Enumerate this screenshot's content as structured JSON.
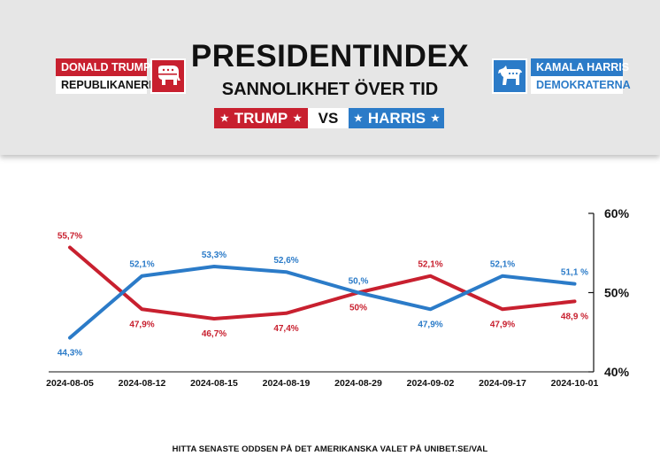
{
  "header": {
    "title": "PRESIDENTINDEX",
    "subtitle": "SANNOLIKHET ÖVER TID",
    "vs_trump": "TRUMP",
    "vs_mid": "VS",
    "vs_harris": "HARRIS",
    "star": "★"
  },
  "candidates": {
    "republican": {
      "name": "DONALD TRUMP",
      "party": "REPUBLIKANERNA",
      "icon": "elephant-icon",
      "color": "#c8202f"
    },
    "democrat": {
      "name": "KAMALA HARRIS",
      "party": "DEMOKRATERNA",
      "icon": "donkey-icon",
      "color": "#2b7bc8"
    }
  },
  "chart_data": {
    "type": "line",
    "categories": [
      "2024-08-05",
      "2024-08-12",
      "2024-08-15",
      "2024-08-19",
      "2024-08-29",
      "2024-09-02",
      "2024-09-17",
      "2024-10-01"
    ],
    "series": [
      {
        "name": "TRUMP",
        "color": "#c8202f",
        "values": [
          55.7,
          47.9,
          46.7,
          47.4,
          50.0,
          52.1,
          47.9,
          48.9
        ],
        "labels": [
          "55,7%",
          "47,9%",
          "46,7%",
          "47,4%",
          "50%",
          "52,1%",
          "47,9%",
          "48,9 %"
        ]
      },
      {
        "name": "HARRIS",
        "color": "#2b7bc8",
        "values": [
          44.3,
          52.1,
          53.3,
          52.6,
          50.0,
          47.9,
          52.1,
          51.1
        ],
        "labels": [
          "44,3%",
          "52,1%",
          "53,3%",
          "52,6%",
          "50,%",
          "47,9%",
          "52,1%",
          "51,1 %"
        ]
      }
    ],
    "y_ticks": [
      "60%",
      "50%",
      "40%"
    ],
    "ylim": [
      40,
      60
    ],
    "grid": false,
    "legend": "none"
  },
  "footer": "HITTA SENASTE ODDSEN PÅ DET AMERIKANSKA VALET PÅ UNIBET.SE/VAL"
}
